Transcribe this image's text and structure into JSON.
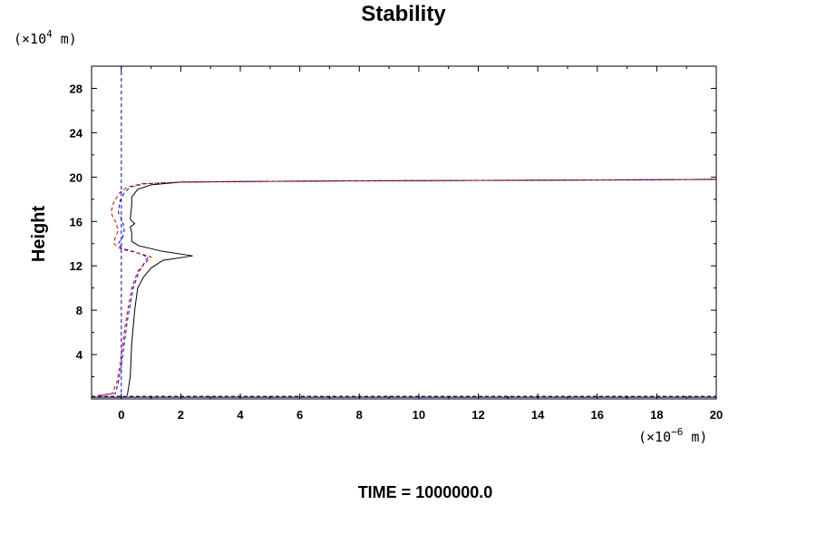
{
  "chart_data": {
    "type": "line",
    "title": "Stability",
    "ylabel": "Height",
    "y_units": {
      "prefix": "(×10",
      "exp": "4",
      "suffix": " m)"
    },
    "x_units": {
      "prefix": "(×10",
      "exp": "−6",
      "suffix": " m)"
    },
    "footer": "TIME = 1000000.0",
    "xlim": [
      -1,
      20
    ],
    "ylim": [
      0,
      30
    ],
    "x_ticks": [
      0,
      2,
      4,
      6,
      8,
      10,
      12,
      14,
      16,
      18,
      20
    ],
    "y_ticks": [
      4,
      8,
      12,
      16,
      20,
      24,
      28
    ],
    "grid": false,
    "series": [
      {
        "color": "#000000",
        "dash": "solid",
        "x": [
          0.2,
          0.3,
          0.35,
          0.45,
          0.55,
          0.75,
          1.0,
          1.4,
          2.4,
          1.4,
          0.6,
          0.35,
          0.35,
          0.3,
          0.45,
          0.3,
          0.35,
          0.35,
          0.55,
          1.0,
          2.0,
          4.0,
          7.0,
          12.0,
          17.0,
          20.0
        ],
        "y": [
          0.3,
          2.0,
          5.0,
          8.0,
          10.0,
          11.0,
          11.8,
          12.5,
          12.9,
          13.3,
          13.8,
          14.2,
          15.0,
          15.5,
          15.8,
          16.2,
          17.5,
          18.2,
          18.9,
          19.3,
          19.55,
          19.6,
          19.65,
          19.7,
          19.75,
          19.8
        ]
      },
      {
        "color": "#0000cc",
        "dash": "dashed",
        "x": [
          0.0,
          0.0
        ],
        "y": [
          0.0,
          30.0
        ]
      },
      {
        "color": "#0000cc",
        "dash": "dashed",
        "x": [
          -0.7,
          -0.2,
          -0.1,
          0.0,
          0.1,
          0.2,
          0.4,
          0.6,
          0.9,
          0.4,
          0.0,
          -0.1,
          0.05,
          0.1,
          0.05,
          -0.1,
          -0.05,
          0.1,
          0.3,
          0.8,
          2.0,
          4.0,
          7.0,
          12.0,
          17.0,
          20.0
        ],
        "y": [
          0.3,
          0.5,
          1.5,
          3.0,
          5.0,
          7.0,
          10.0,
          11.5,
          12.8,
          13.3,
          13.6,
          14.0,
          14.6,
          15.2,
          16.0,
          16.8,
          17.8,
          18.6,
          19.1,
          19.4,
          19.55,
          19.6,
          19.65,
          19.7,
          19.75,
          19.8
        ]
      },
      {
        "color": "#cc0000",
        "dash": "dashed",
        "x": [
          -0.8,
          -0.3,
          -0.15,
          -0.05,
          0.05,
          0.15,
          0.35,
          0.55,
          1.0,
          0.5,
          0.0,
          -0.25,
          -0.2,
          -0.1,
          -0.2,
          -0.35,
          -0.25,
          -0.05,
          0.2,
          0.7,
          2.0,
          4.0,
          7.0,
          12.0,
          17.0,
          20.0
        ],
        "y": [
          0.3,
          0.5,
          1.5,
          3.0,
          5.0,
          7.0,
          10.0,
          11.5,
          12.8,
          13.2,
          13.5,
          14.0,
          14.6,
          15.2,
          16.0,
          16.8,
          17.8,
          18.6,
          19.1,
          19.4,
          19.55,
          19.6,
          19.65,
          19.7,
          19.75,
          19.8
        ]
      },
      {
        "color": "#000000",
        "dash": "solid",
        "x": [
          -1.0,
          20.0
        ],
        "y": [
          0.15,
          0.15
        ]
      },
      {
        "color": "#cc0000",
        "dash": "dashed",
        "x": [
          -1.0,
          20.0
        ],
        "y": [
          0.25,
          0.25
        ]
      },
      {
        "color": "#0000cc",
        "dash": "dashed",
        "x": [
          -1.0,
          20.0
        ],
        "y": [
          0.2,
          0.2
        ]
      }
    ]
  }
}
